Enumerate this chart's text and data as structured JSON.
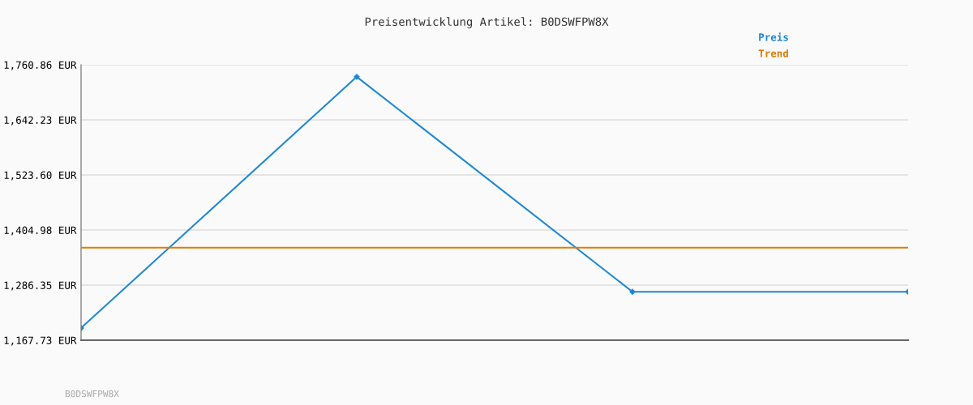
{
  "chart_data": {
    "type": "line",
    "title": "Preisentwicklung Artikel: B0DSWFPW8X",
    "categories": [
      null,
      null,
      null,
      null
    ],
    "series": [
      {
        "name": "Preis",
        "color": "#1e88d6",
        "values": [
          1194,
          1735,
          1272,
          1272
        ],
        "marker": "diamond"
      },
      {
        "name": "Trend",
        "color": "#e07b00",
        "values": [
          1367,
          1367,
          1367,
          1367
        ],
        "marker": "none"
      }
    ],
    "ylim": [
      1167.73,
      1760.86
    ],
    "yticks": [
      {
        "value": 1167.73,
        "label": "1,167.73 EUR"
      },
      {
        "value": 1286.35,
        "label": "1,286.35 EUR"
      },
      {
        "value": 1404.98,
        "label": "1,404.98 EUR"
      },
      {
        "value": 1523.6,
        "label": "1,523.60 EUR"
      },
      {
        "value": 1642.23,
        "label": "1,642.23 EUR"
      },
      {
        "value": 1760.86,
        "label": "1,760.86 EUR"
      }
    ],
    "grid": "y",
    "legend": "top right",
    "line_style": "solid",
    "annotations": [
      "B0DSWFPW8X"
    ]
  }
}
